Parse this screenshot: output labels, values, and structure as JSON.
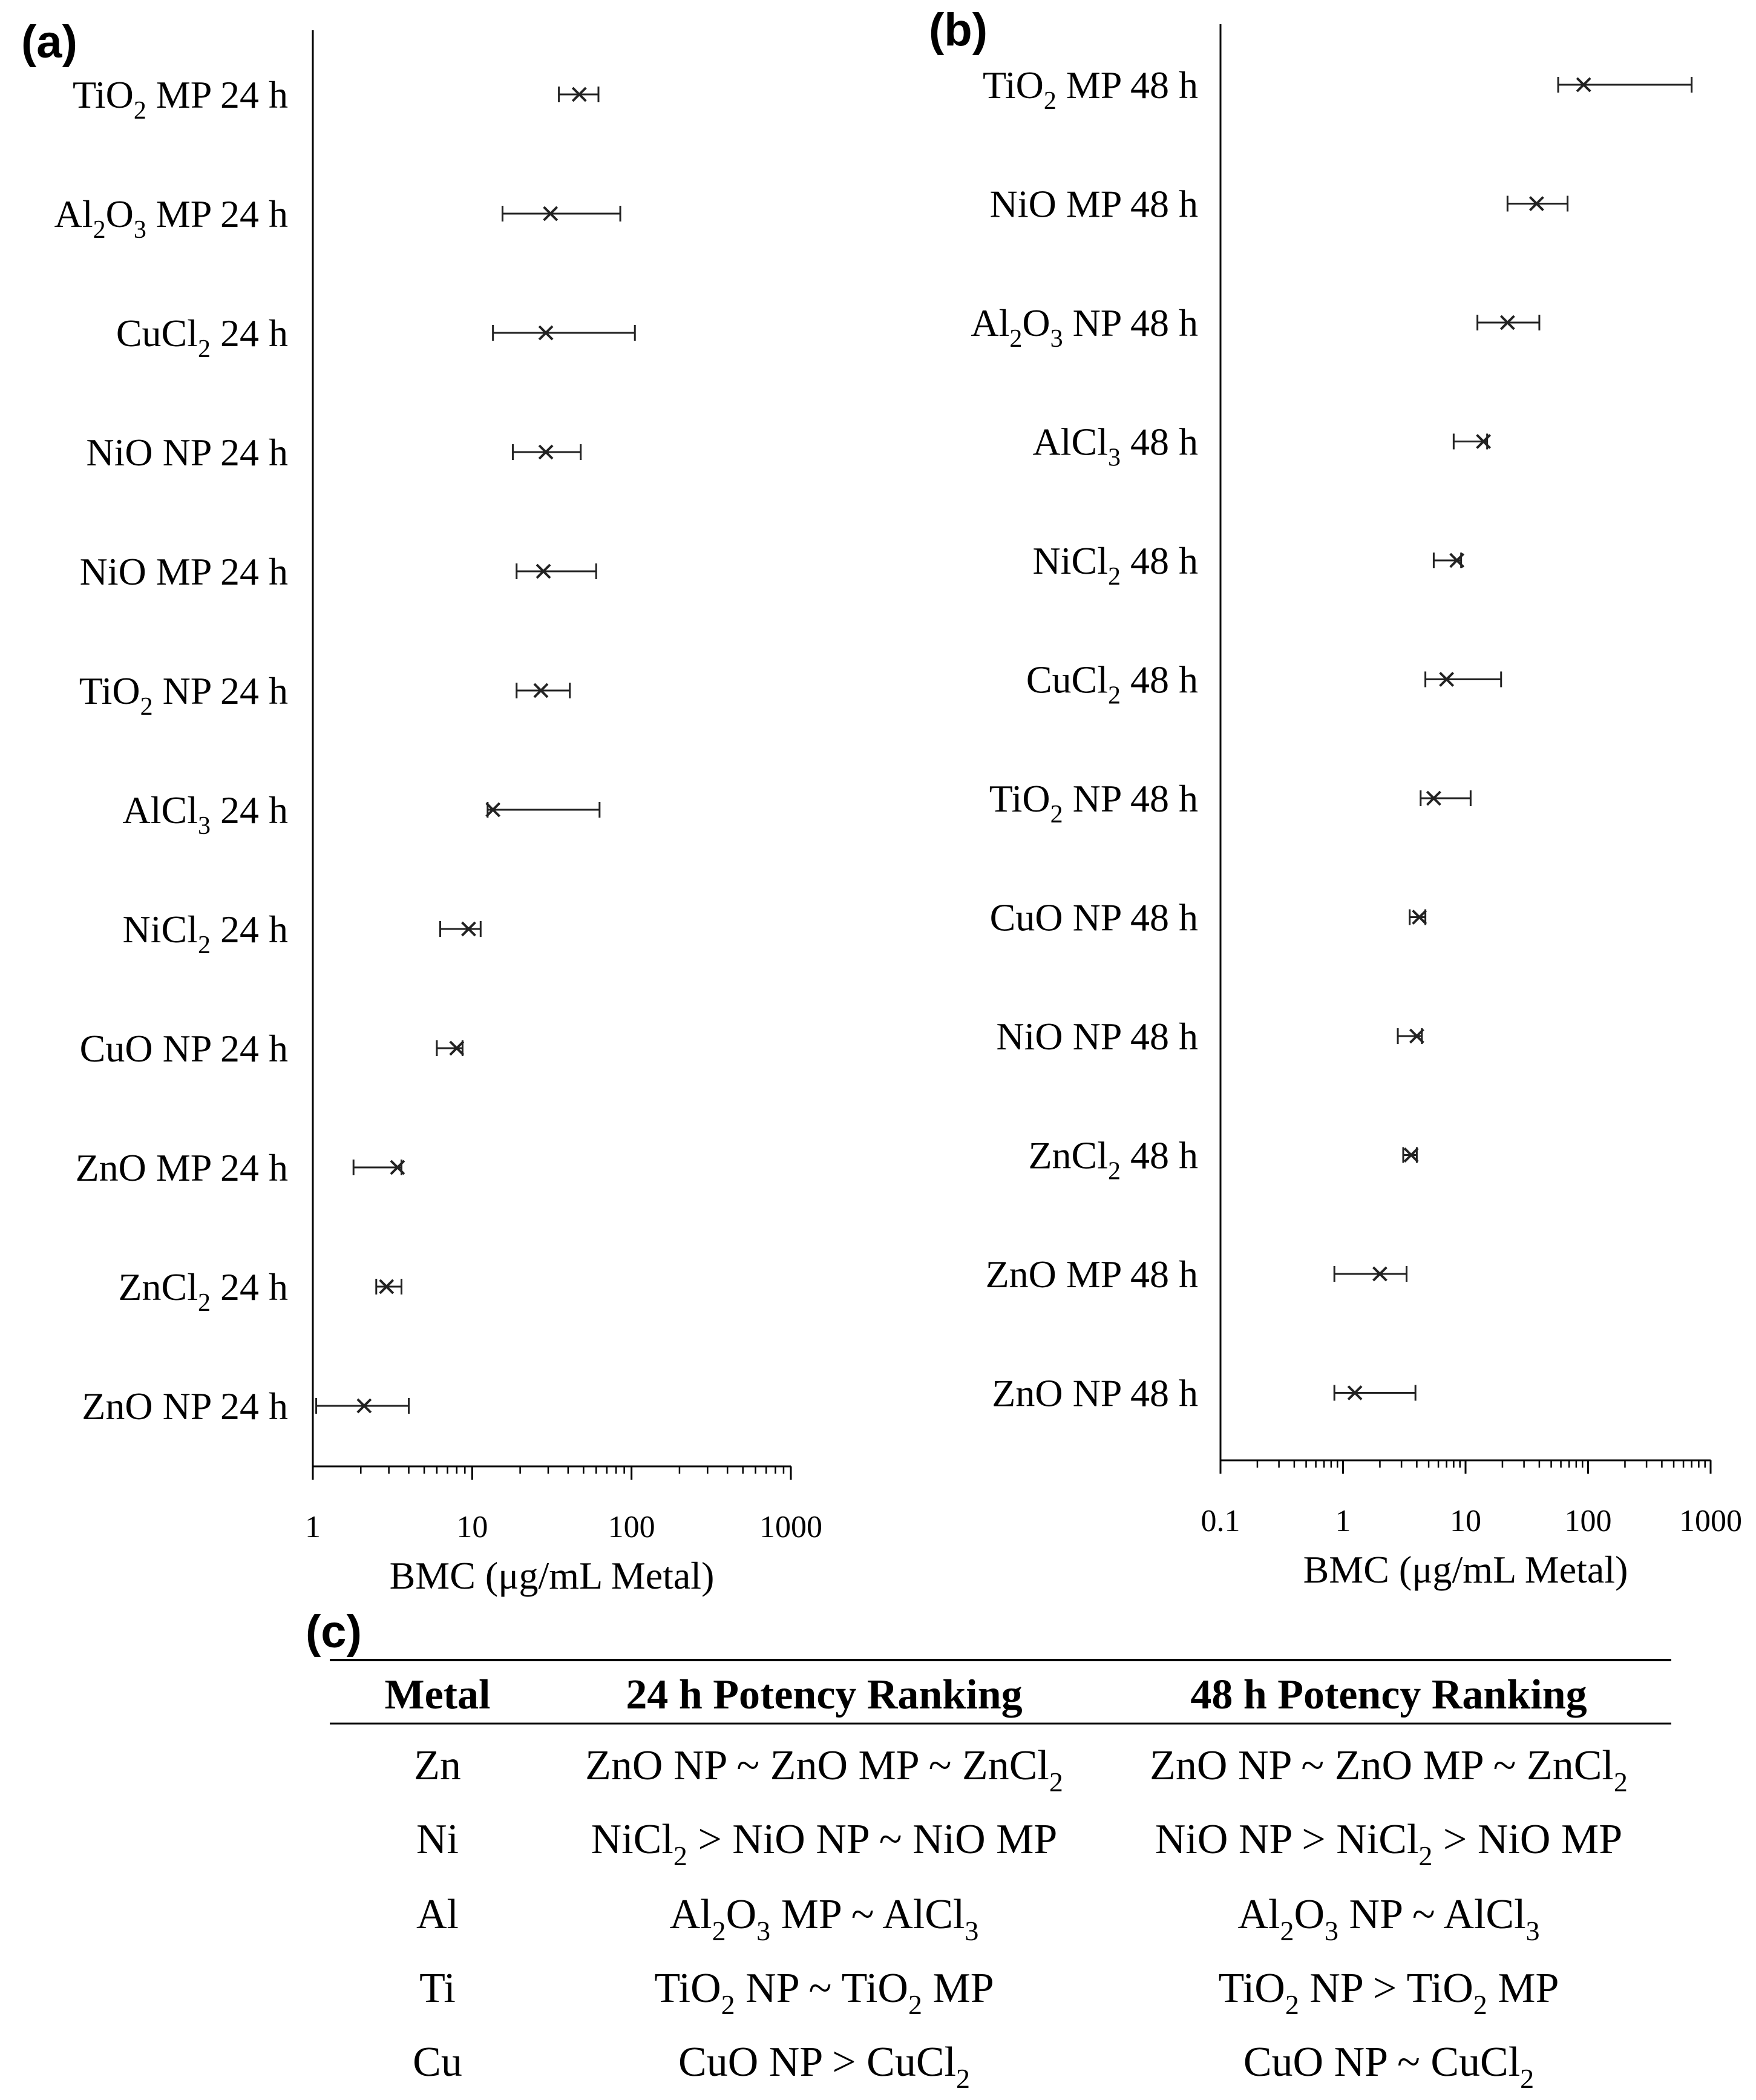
{
  "chart_data": [
    {
      "panel": "(a)",
      "type": "scatter",
      "orientation": "horizontal",
      "x_scale": "log",
      "xlim": [
        1,
        1000
      ],
      "xticks": [
        "1",
        "10",
        "100",
        "1000"
      ],
      "xlabel": "BMC (μg/mL Metal)",
      "grid": false,
      "legend": "none",
      "color": "#222222",
      "points": [
        {
          "label": [
            "TiO",
            "2",
            " MP 24 h"
          ],
          "value": 47,
          "low": 35,
          "high": 62
        },
        {
          "label": [
            "Al",
            "2",
            "O",
            "3",
            " MP 24 h"
          ],
          "value": 31,
          "low": 15.5,
          "high": 85
        },
        {
          "label": [
            "CuCl",
            "2",
            " 24 h"
          ],
          "value": 29,
          "low": 13.5,
          "high": 105
        },
        {
          "label": [
            "NiO NP 24 h"
          ],
          "value": 29,
          "low": 18,
          "high": 48
        },
        {
          "label": [
            "NiO MP 24 h"
          ],
          "value": 28,
          "low": 19,
          "high": 60
        },
        {
          "label": [
            "TiO",
            "2",
            " NP 24 h"
          ],
          "value": 27,
          "low": 19,
          "high": 41
        },
        {
          "label": [
            "AlCl",
            "3",
            " 24 h"
          ],
          "value": 13.5,
          "low": 12.5,
          "high": 63
        },
        {
          "label": [
            "NiCl",
            "2",
            " 24 h"
          ],
          "value": 9.5,
          "low": 6.3,
          "high": 11.3
        },
        {
          "label": [
            "CuO NP 24 h"
          ],
          "value": 8.0,
          "low": 6.0,
          "high": 8.7
        },
        {
          "label": [
            "ZnO MP 24 h"
          ],
          "value": 3.4,
          "low": 1.8,
          "high": 3.6
        },
        {
          "label": [
            "ZnCl",
            "2",
            " 24 h"
          ],
          "value": 2.9,
          "low": 2.5,
          "high": 3.6
        },
        {
          "label": [
            "ZnO NP 24 h"
          ],
          "value": 2.1,
          "low": 1.05,
          "high": 4.0
        }
      ]
    },
    {
      "panel": "(b)",
      "type": "scatter",
      "orientation": "horizontal",
      "x_scale": "log",
      "xlim": [
        0.1,
        1000
      ],
      "xticks": [
        "0.1",
        "1",
        "10",
        "100",
        "1000"
      ],
      "xlabel": "BMC (μg/mL Metal)",
      "grid": false,
      "legend": "none",
      "color": "#222222",
      "points": [
        {
          "label": [
            "TiO",
            "2",
            " MP 48 h"
          ],
          "value": 92,
          "low": 57,
          "high": 700
        },
        {
          "label": [
            "NiO MP 48 h"
          ],
          "value": 38,
          "low": 22,
          "high": 68
        },
        {
          "label": [
            "Al",
            "2",
            "O",
            "3",
            " NP 48 h"
          ],
          "value": 22,
          "low": 12.5,
          "high": 40
        },
        {
          "label": [
            "AlCl",
            "3",
            " 48 h"
          ],
          "value": 14,
          "low": 8,
          "high": 15
        },
        {
          "label": [
            "NiCl",
            "2",
            " 48 h"
          ],
          "value": 8.5,
          "low": 5.5,
          "high": 9.2
        },
        {
          "label": [
            "CuCl",
            "2",
            " 48 h"
          ],
          "value": 7.0,
          "low": 4.7,
          "high": 19.5
        },
        {
          "label": [
            "TiO",
            "2",
            " NP 48 h"
          ],
          "value": 5.5,
          "low": 4.3,
          "high": 11
        },
        {
          "label": [
            "CuO NP 48 h"
          ],
          "value": 4.2,
          "low": 3.5,
          "high": 4.7
        },
        {
          "label": [
            "NiO NP 48 h"
          ],
          "value": 4.0,
          "low": 2.8,
          "high": 4.4
        },
        {
          "label": [
            "ZnCl",
            "2",
            " 48 h"
          ],
          "value": 3.6,
          "low": 3.1,
          "high": 4.0
        },
        {
          "label": [
            "ZnO MP 48 h"
          ],
          "value": 2.0,
          "low": 0.85,
          "high": 3.3
        },
        {
          "label": [
            "ZnO NP 48 h"
          ],
          "value": 1.25,
          "low": 0.85,
          "high": 3.9
        }
      ]
    }
  ],
  "table": {
    "panel": "(c)",
    "headers": [
      "Metal",
      "24 h Potency Ranking",
      "48 h Potency Ranking"
    ],
    "rows": [
      {
        "metal": "Zn",
        "h24": [
          [
            "ZnO NP ~ ZnO MP ~ ZnCl"
          ],
          [
            "2"
          ]
        ],
        "h48": [
          [
            "ZnO NP ~ ZnO MP ~ ZnCl"
          ],
          [
            "2"
          ]
        ]
      },
      {
        "metal": "Ni",
        "h24": [
          [
            "NiCl"
          ],
          [
            "2"
          ],
          [
            " > NiO NP ~ NiO MP"
          ]
        ],
        "h48": [
          [
            "NiO NP > NiCl"
          ],
          [
            "2"
          ],
          [
            " > NiO MP"
          ]
        ]
      },
      {
        "metal": "Al",
        "h24": [
          [
            "Al"
          ],
          [
            "2"
          ],
          [
            "O"
          ],
          [
            "3"
          ],
          [
            " MP ~ AlCl"
          ],
          [
            "3"
          ]
        ],
        "h48": [
          [
            "Al"
          ],
          [
            "2"
          ],
          [
            "O"
          ],
          [
            "3"
          ],
          [
            " NP ~ AlCl"
          ],
          [
            "3"
          ]
        ]
      },
      {
        "metal": "Ti",
        "h24": [
          [
            "TiO"
          ],
          [
            "2"
          ],
          [
            " NP ~ TiO"
          ],
          [
            "2"
          ],
          [
            " MP"
          ]
        ],
        "h48": [
          [
            "TiO"
          ],
          [
            "2"
          ],
          [
            " NP > TiO"
          ],
          [
            "2"
          ],
          [
            " MP"
          ]
        ]
      },
      {
        "metal": "Cu",
        "h24": [
          [
            "CuO NP > CuCl"
          ],
          [
            "2"
          ]
        ],
        "h48": [
          [
            "CuO NP ~ CuCl"
          ],
          [
            "2"
          ]
        ]
      }
    ]
  }
}
